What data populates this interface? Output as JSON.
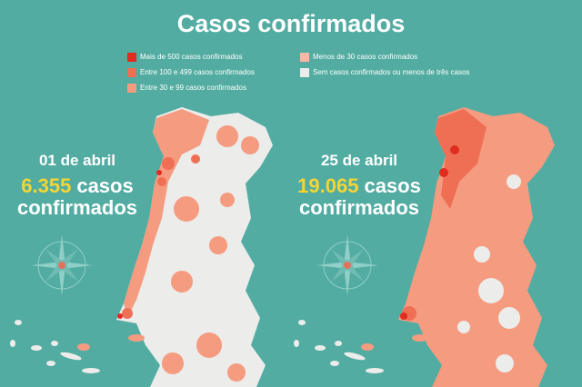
{
  "header": {
    "title": "Casos confirmados"
  },
  "legend": {
    "items": [
      {
        "label": "Mais de 500 casos confirmados",
        "color": "#e02d1f"
      },
      {
        "label": "Entre 100 e 499 casos confirmados",
        "color": "#ef6f55"
      },
      {
        "label": "Entre 30 e 99 casos confirmados",
        "color": "#f59b80"
      },
      {
        "label": "Menos de 30 casos confirmados",
        "color": "#f7b9a3"
      },
      {
        "label": "Sem casos confirmados ou menos de três casos",
        "color": "#ececea"
      }
    ]
  },
  "panels": [
    {
      "date": "01 de abril",
      "number": "6.355",
      "unit": "casos",
      "unit2": "confirmados"
    },
    {
      "date": "25 de abril",
      "number": "19.065",
      "unit": "casos",
      "unit2": "confirmados"
    }
  ]
}
